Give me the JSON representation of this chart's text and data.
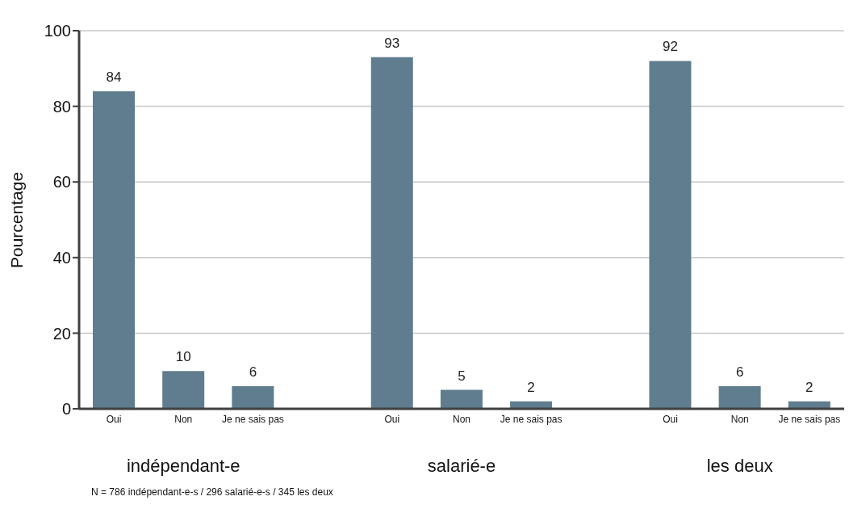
{
  "chart_data": {
    "type": "bar",
    "ylabel": "Pourcentage",
    "categories": [
      "Oui",
      "Non",
      "Je ne sais pas",
      null,
      "Oui",
      "Non",
      "Je ne sais pas",
      null,
      "Oui",
      "Non",
      "Je ne sais pas"
    ],
    "values": [
      84,
      10,
      6,
      null,
      93,
      5,
      2,
      null,
      92,
      6,
      2
    ],
    "color": "#5f7d8e",
    "ylim": [
      0,
      100
    ],
    "yticks": [
      0,
      20,
      40,
      60,
      80,
      100
    ],
    "grid": "y",
    "data_labels": true,
    "annotations": [
      "indépendant-e",
      "salarié-e",
      "les deux",
      "N = 786 indépendant-e-s / 296 salarié-e-s / 345 les deux"
    ]
  }
}
